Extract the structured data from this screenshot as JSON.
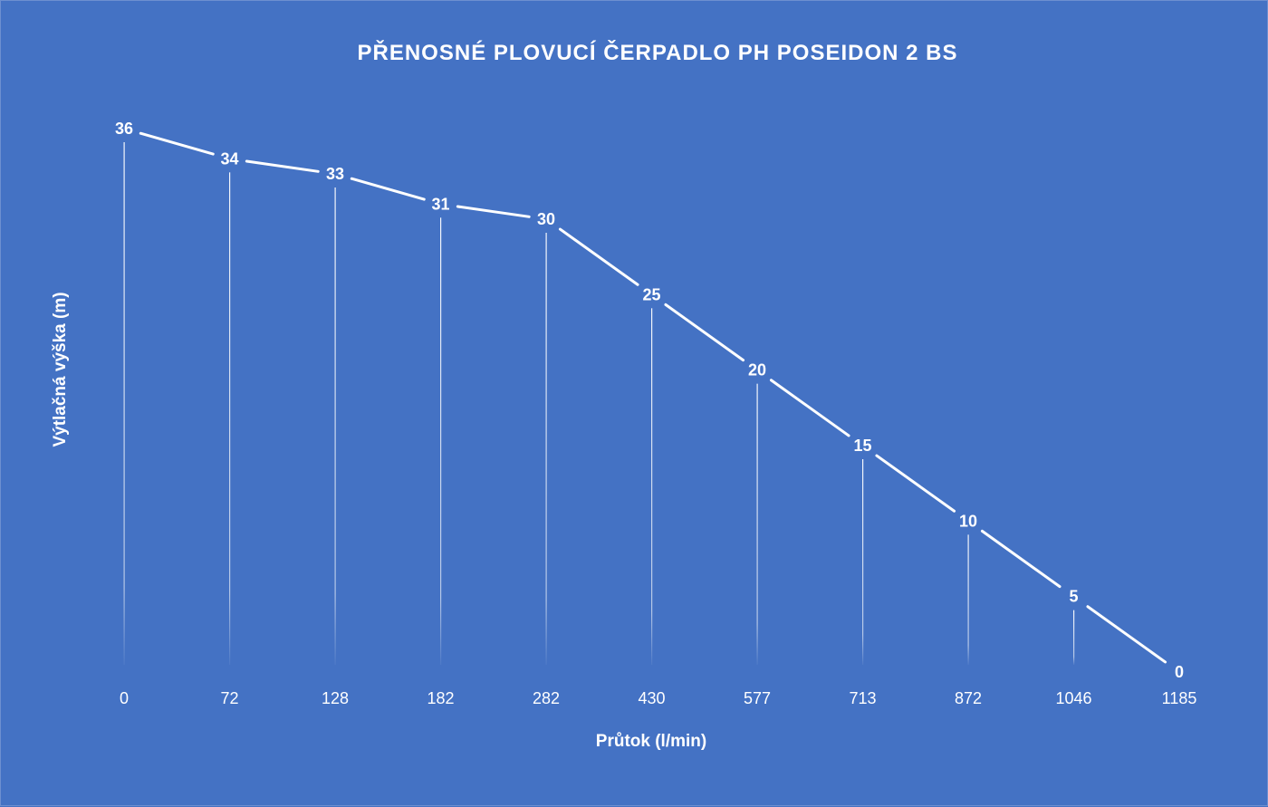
{
  "chart_data": {
    "type": "line",
    "title": "PŘENOSNÉ PLOVUCÍ ČERPADLO PH POSEIDON 2 BS",
    "xlabel": "Průtok (l/min)",
    "ylabel": "Výtlačná výška (m)",
    "categories": [
      "0",
      "72",
      "128",
      "182",
      "282",
      "430",
      "577",
      "713",
      "872",
      "1046",
      "1185"
    ],
    "values": [
      36,
      34,
      33,
      31,
      30,
      25,
      20,
      15,
      10,
      5,
      0
    ],
    "ylim": [
      0,
      36
    ],
    "grid": false,
    "drop_lines": true,
    "data_labels": true,
    "legend": "none",
    "colors": {
      "background": "#4472C4",
      "line": "#FFFFFF",
      "text": "#FFFFFF"
    }
  }
}
